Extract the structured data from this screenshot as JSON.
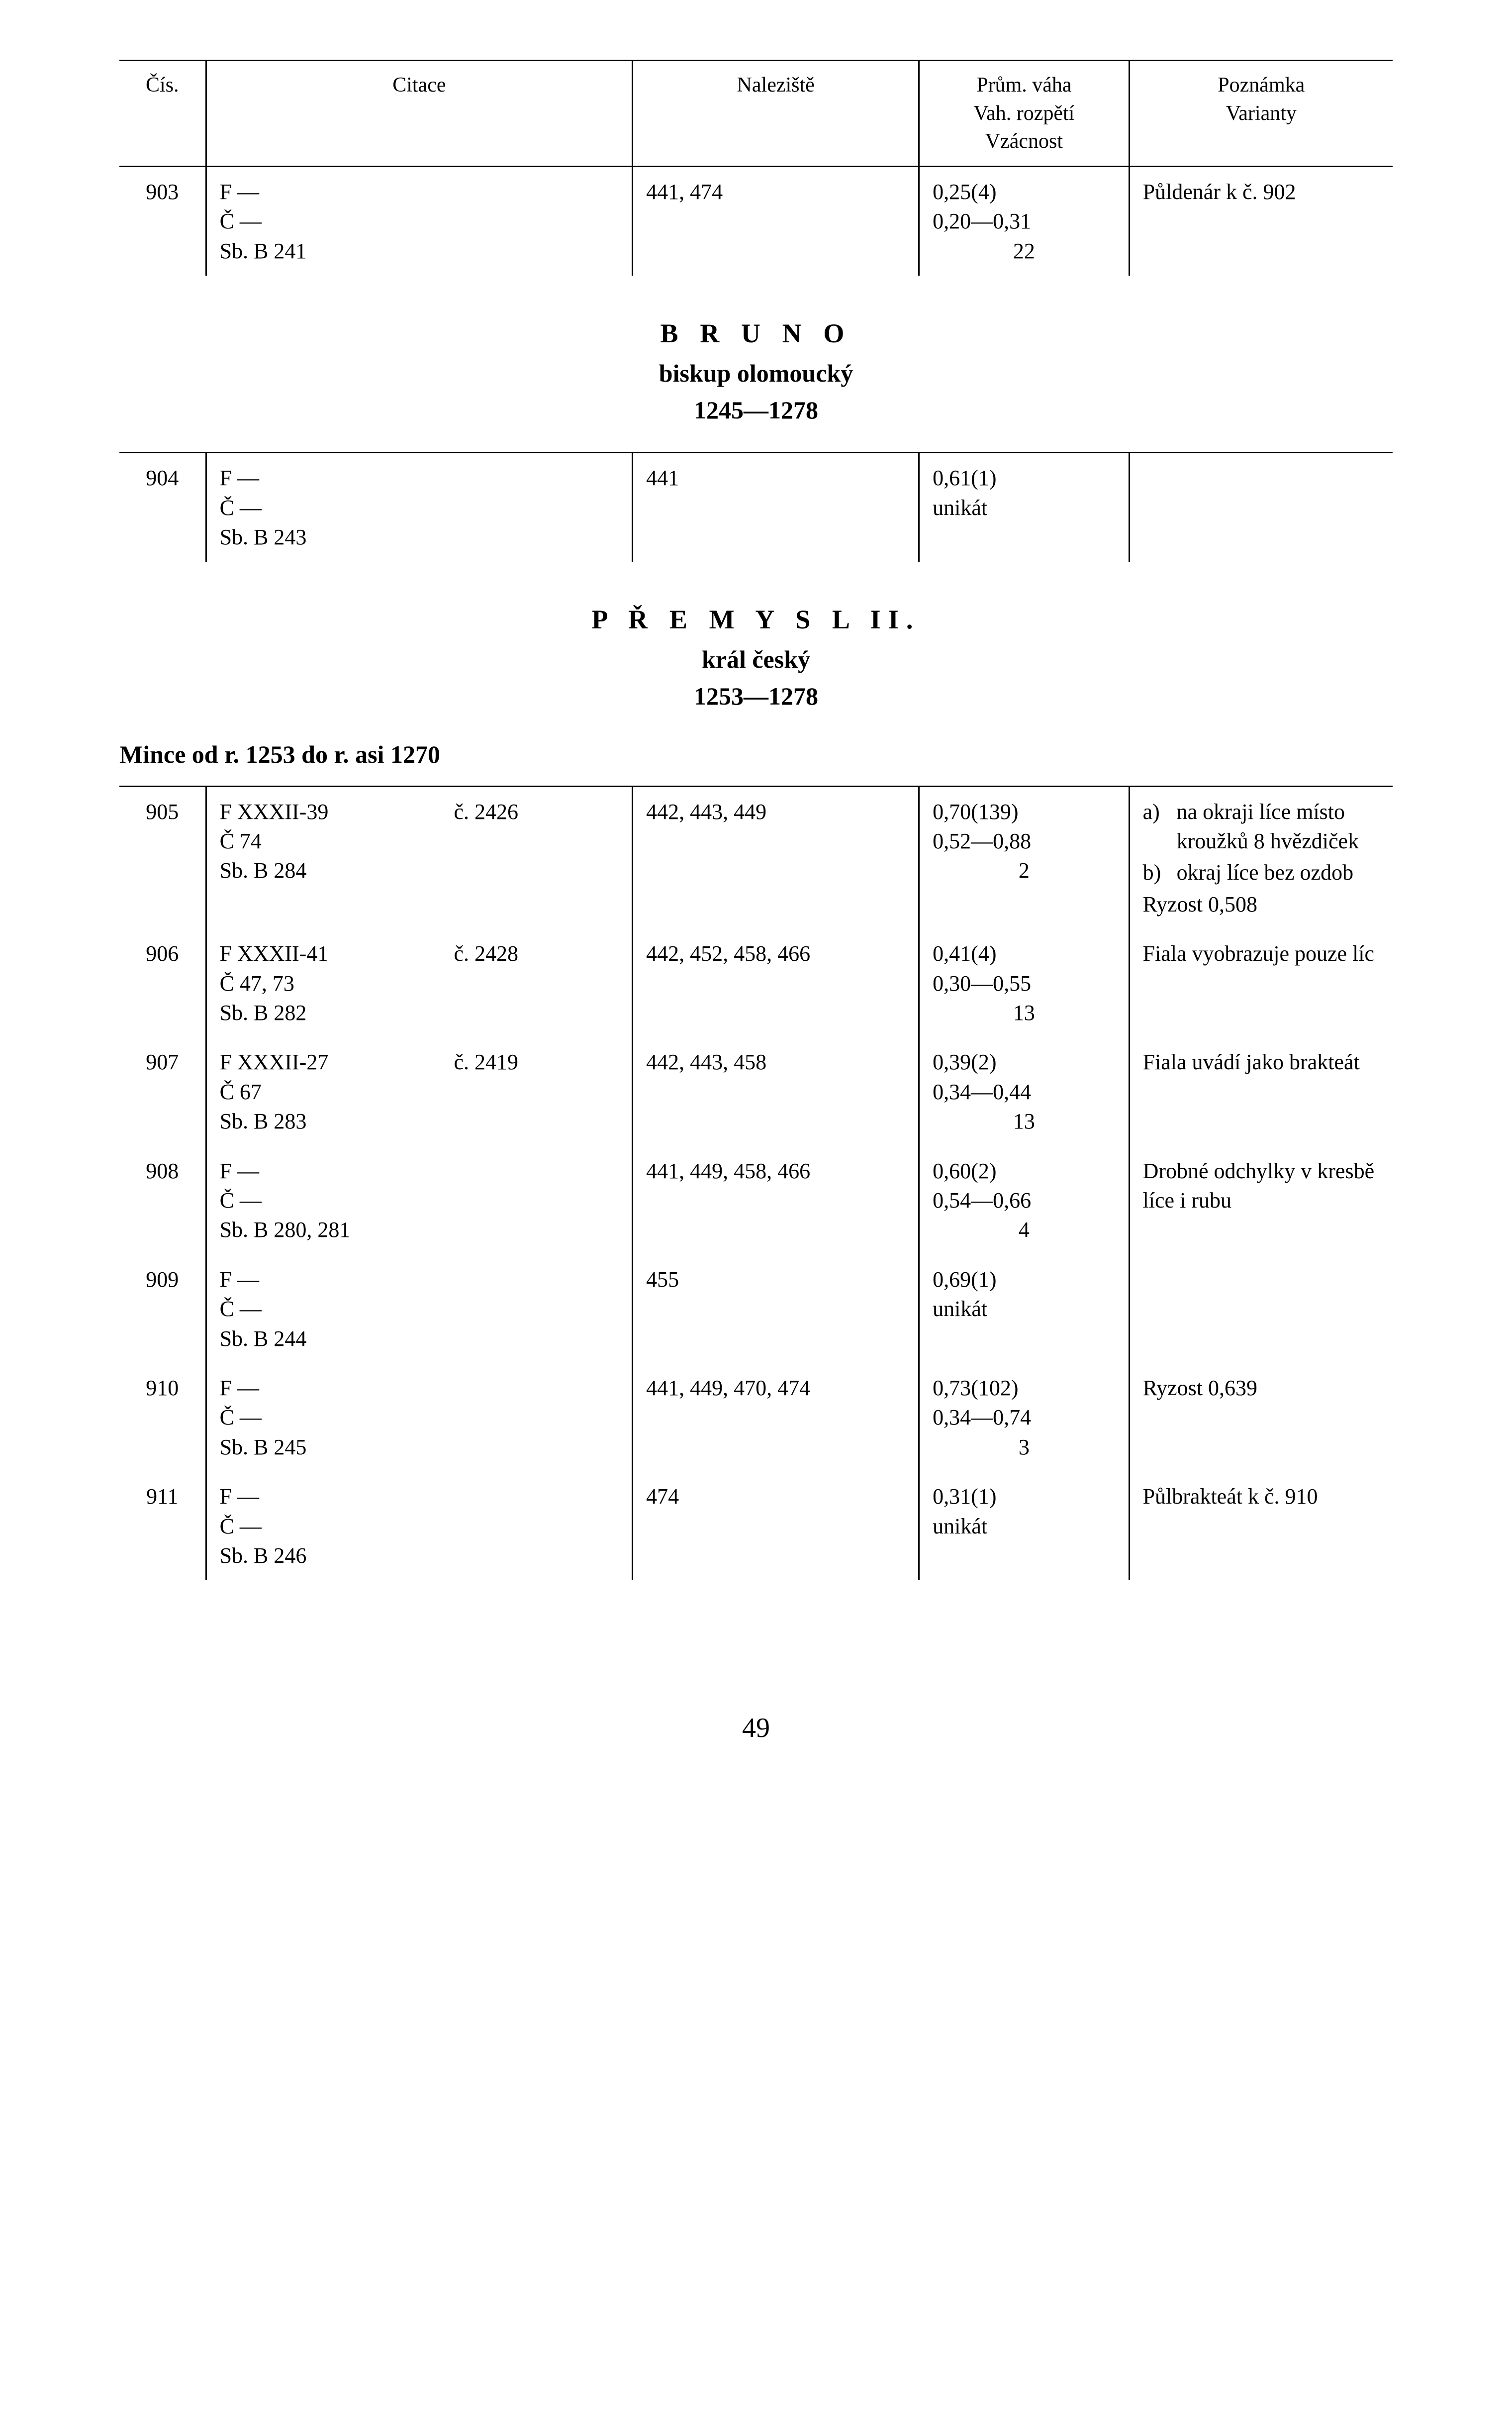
{
  "page_number": "49",
  "headers": {
    "cis": "Čís.",
    "citace": "Citace",
    "naleziste": "Naleziště",
    "vaha_line1": "Prům. váha",
    "vaha_line2": "Vah. rozpětí",
    "vaha_line3": "Vzácnost",
    "pozn_line1": "Poznámka",
    "pozn_line2": "Varianty"
  },
  "sections": [
    {
      "ruler": "B R U N O",
      "title": "biskup olomoucký",
      "years": "1245—1278"
    },
    {
      "ruler": "P Ř E M Y S L  II.",
      "title": "král český",
      "years": "1253—1278",
      "subhead": "Mince od r. 1253 do r. asi 1270"
    }
  ],
  "rows903": {
    "cis": "903",
    "citace_f": "F  —",
    "citace_c": "Č  —",
    "citace_sb": "Sb. B  241",
    "nalez": "441, 474",
    "v1": "0,25(4)",
    "v2": "0,20—0,31",
    "v3": "22",
    "pozn": "Půldenár k č. 902"
  },
  "rows904": {
    "cis": "904",
    "citace_f": "F  —",
    "citace_c": "Č  —",
    "citace_sb": "Sb. B  243",
    "nalez": "441",
    "v1": "0,61(1)",
    "v2": "unikát",
    "pozn": ""
  },
  "rows905": {
    "cis": "905",
    "citace_f": "F  XXXII-39",
    "citace_fnum": "č. 2426",
    "citace_c": "Č  74",
    "citace_sb": "Sb. B  284",
    "nalez": "442, 443, 449",
    "v1": "0,70(139)",
    "v2": "0,52—0,88",
    "v3": "2",
    "pozn_a_tag": "a)",
    "pozn_a": "na okraji líce místo kroužků 8 hvězdiček",
    "pozn_b_tag": "b)",
    "pozn_b": "okraj líce bez ozdob",
    "pozn_extra": "Ryzost  0,508"
  },
  "rows906": {
    "cis": "906",
    "citace_f": "F  XXXII-41",
    "citace_fnum": "č. 2428",
    "citace_c": "Č  47, 73",
    "citace_sb": "Sb. B  282",
    "nalez": "442, 452, 458, 466",
    "v1": "0,41(4)",
    "v2": "0,30—0,55",
    "v3": "13",
    "pozn": "Fiala vyobrazuje pouze líc"
  },
  "rows907": {
    "cis": "907",
    "citace_f": "F  XXXII-27",
    "citace_fnum": "č. 2419",
    "citace_c": "Č  67",
    "citace_sb": "Sb. B  283",
    "nalez": "442, 443, 458",
    "v1": "0,39(2)",
    "v2": "0,34—0,44",
    "v3": "13",
    "pozn": "Fiala uvádí jako brakteát"
  },
  "rows908": {
    "cis": "908",
    "citace_f": "F  —",
    "citace_c": "Č  —",
    "citace_sb": "Sb. B  280, 281",
    "nalez": "441, 449, 458, 466",
    "v1": "0,60(2)",
    "v2": "0,54—0,66",
    "v3": "4",
    "pozn": "Drobné odchylky v kresbě líce i rubu"
  },
  "rows909": {
    "cis": "909",
    "citace_f": "F  —",
    "citace_c": "Č  —",
    "citace_sb": "Sb. B  244",
    "nalez": "455",
    "v1": "0,69(1)",
    "v2": "unikát",
    "pozn": ""
  },
  "rows910": {
    "cis": "910",
    "citace_f": "F  —",
    "citace_c": "Č  —",
    "citace_sb": "Sb. B  245",
    "nalez": "441, 449, 470, 474",
    "v1": "0,73(102)",
    "v2": "0,34—0,74",
    "v3": "3",
    "pozn": "Ryzost  0,639"
  },
  "rows911": {
    "cis": "911",
    "citace_f": "F  —",
    "citace_c": "Č  —",
    "citace_sb": "Sb. B  246",
    "nalez": "474",
    "v1": "0,31(1)",
    "v2": "unikát",
    "pozn": "Půlbrakteát k č. 910"
  }
}
